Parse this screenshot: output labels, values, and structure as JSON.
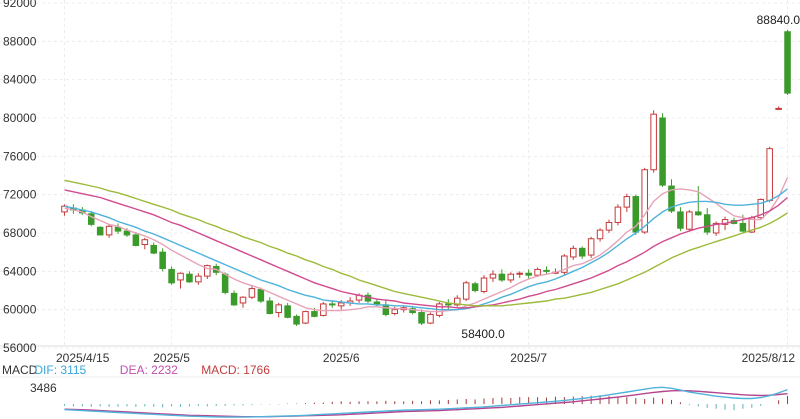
{
  "chart_data": {
    "type": "candlestick",
    "price_axis": {
      "ylim": [
        56000,
        92000
      ],
      "ticks": [
        56000,
        60000,
        64000,
        68000,
        72000,
        76000,
        80000,
        84000,
        88000,
        92000
      ],
      "tick_labels": [
        "56000",
        "60000",
        "64000",
        "68000",
        "72000",
        "76000",
        "80000",
        "84000",
        "88000",
        "92000"
      ]
    },
    "x_axis": {
      "labels": [
        {
          "text": "2025/4/15",
          "index": 0
        },
        {
          "text": "2025/5",
          "index": 12
        },
        {
          "text": "2025/6",
          "index": 31
        },
        {
          "text": "2025/7",
          "index": 52
        },
        {
          "text": "2025/8/12",
          "index": 81
        }
      ]
    },
    "annotations": [
      {
        "text": "88840.0",
        "index": 82,
        "value": 88840
      },
      {
        "text": "58400.0",
        "index": 46,
        "value": 58400
      }
    ],
    "candles": [
      [
        70200,
        71000,
        69800,
        70800
      ],
      [
        70600,
        71000,
        70000,
        70400
      ],
      [
        70400,
        70700,
        69900,
        70100
      ],
      [
        70000,
        70300,
        68700,
        68900
      ],
      [
        68600,
        68700,
        67800,
        67800
      ],
      [
        67800,
        68900,
        67500,
        68700
      ],
      [
        68600,
        69000,
        67900,
        68200
      ],
      [
        68200,
        68500,
        67600,
        67800
      ],
      [
        67800,
        68100,
        66600,
        66700
      ],
      [
        66800,
        67500,
        66300,
        67300
      ],
      [
        66700,
        67000,
        65800,
        65900
      ],
      [
        66000,
        66400,
        64000,
        64300
      ],
      [
        64200,
        64500,
        62600,
        62800
      ],
      [
        63100,
        63900,
        62200,
        63800
      ],
      [
        63700,
        64000,
        62800,
        62900
      ],
      [
        62900,
        63800,
        62600,
        63500
      ],
      [
        63500,
        64700,
        63200,
        64600
      ],
      [
        64500,
        64800,
        63600,
        63900
      ],
      [
        63700,
        63900,
        61600,
        61800
      ],
      [
        61700,
        62000,
        60400,
        60500
      ],
      [
        60700,
        61400,
        60200,
        61300
      ],
      [
        61300,
        62500,
        61100,
        62200
      ],
      [
        62100,
        62300,
        60700,
        60900
      ],
      [
        60900,
        61300,
        59500,
        59600
      ],
      [
        59700,
        60700,
        59200,
        60500
      ],
      [
        60400,
        60700,
        59100,
        59200
      ],
      [
        59300,
        59500,
        58300,
        58500
      ],
      [
        58600,
        59900,
        58500,
        59800
      ],
      [
        59800,
        60200,
        59200,
        59300
      ],
      [
        59400,
        60800,
        59300,
        60600
      ],
      [
        60600,
        61000,
        60200,
        60500
      ],
      [
        60400,
        61000,
        60000,
        60700
      ],
      [
        60700,
        61300,
        60400,
        60900
      ],
      [
        61000,
        61700,
        60700,
        61500
      ],
      [
        61500,
        61800,
        60700,
        60900
      ],
      [
        60800,
        61100,
        60300,
        60600
      ],
      [
        60500,
        61000,
        59300,
        59500
      ],
      [
        59600,
        60300,
        59400,
        60000
      ],
      [
        60000,
        60400,
        59700,
        60200
      ],
      [
        60100,
        60400,
        59500,
        59700
      ],
      [
        59700,
        60000,
        58400,
        58600
      ],
      [
        58600,
        59700,
        58500,
        59500
      ],
      [
        59400,
        60800,
        59200,
        60600
      ],
      [
        60600,
        61100,
        60000,
        60500
      ],
      [
        60500,
        61500,
        60300,
        61200
      ],
      [
        61100,
        63000,
        60900,
        62800
      ],
      [
        62700,
        62900,
        61800,
        62000
      ],
      [
        61900,
        63600,
        61700,
        63300
      ],
      [
        63300,
        64100,
        62900,
        63700
      ],
      [
        63700,
        64200,
        62900,
        63100
      ],
      [
        63100,
        63900,
        62800,
        63700
      ],
      [
        63700,
        64000,
        63300,
        63800
      ],
      [
        63800,
        64200,
        63200,
        63600
      ],
      [
        63600,
        64400,
        63400,
        64200
      ],
      [
        64100,
        64500,
        63700,
        64000
      ],
      [
        63900,
        64300,
        63700,
        63900
      ],
      [
        63900,
        65800,
        63600,
        65600
      ],
      [
        65500,
        66700,
        65200,
        66400
      ],
      [
        66400,
        66600,
        65300,
        65600
      ],
      [
        65700,
        67600,
        65400,
        67400
      ],
      [
        67400,
        68500,
        67100,
        68300
      ],
      [
        68300,
        69400,
        68000,
        69100
      ],
      [
        69100,
        71000,
        68800,
        70700
      ],
      [
        70700,
        72100,
        70200,
        71800
      ],
      [
        71800,
        72000,
        67800,
        68100
      ],
      [
        68100,
        74800,
        67900,
        74600
      ],
      [
        74600,
        80800,
        74300,
        80400
      ],
      [
        80000,
        80500,
        72800,
        73000
      ],
      [
        72900,
        73600,
        70100,
        70300
      ],
      [
        70200,
        70700,
        68200,
        68500
      ],
      [
        68400,
        70400,
        68200,
        70200
      ],
      [
        70200,
        72900,
        69800,
        69900
      ],
      [
        69900,
        70600,
        67800,
        68100
      ],
      [
        68000,
        69200,
        67700,
        69000
      ],
      [
        68900,
        69700,
        68300,
        69400
      ],
      [
        69300,
        69600,
        68900,
        69000
      ],
      [
        69000,
        69900,
        68000,
        68200
      ],
      [
        68100,
        69800,
        68000,
        69600
      ],
      [
        69600,
        71600,
        69500,
        71500
      ],
      [
        71400,
        77000,
        71200,
        76800
      ],
      [
        81000,
        81200,
        80900,
        81000
      ],
      [
        89000,
        89200,
        82400,
        82600
      ]
    ],
    "ma_lines": [
      {
        "color": "#e8a3b8",
        "values": [
          70600,
          70400,
          70200,
          69700,
          69300,
          68900,
          68700,
          68300,
          68000,
          67700,
          67300,
          66800,
          66200,
          65700,
          65200,
          64700,
          64300,
          64200,
          63700,
          63200,
          62800,
          62500,
          62200,
          61800,
          61400,
          61000,
          60600,
          60200,
          60000,
          59900,
          59900,
          59900,
          60000,
          60100,
          60300,
          60300,
          60200,
          60100,
          60100,
          60000,
          59900,
          59800,
          59800,
          59900,
          60000,
          60400,
          60700,
          61100,
          61500,
          61900,
          62300,
          62800,
          63200,
          63500,
          63700,
          63900,
          64200,
          64600,
          64800,
          65200,
          65700,
          66400,
          67200,
          68100,
          68700,
          69900,
          71300,
          72100,
          72500,
          72600,
          72500,
          72300,
          71700,
          71100,
          70400,
          69800,
          69600,
          69400,
          69400,
          70300,
          71700,
          73800
        ]
      },
      {
        "color": "#4fb3dc",
        "values": [
          70800,
          70600,
          70400,
          70200,
          69900,
          69600,
          69200,
          68900,
          68600,
          68200,
          67900,
          67500,
          67100,
          66700,
          66300,
          65900,
          65500,
          65100,
          64700,
          64300,
          63900,
          63500,
          63100,
          62800,
          62500,
          62100,
          61800,
          61500,
          61300,
          61000,
          60900,
          60800,
          60700,
          60600,
          60600,
          60500,
          60500,
          60400,
          60400,
          60300,
          60200,
          60100,
          60000,
          60000,
          60000,
          60100,
          60300,
          60600,
          60900,
          61300,
          61600,
          62000,
          62400,
          62700,
          62900,
          63200,
          63600,
          64000,
          64400,
          64900,
          65400,
          66000,
          66700,
          67400,
          68000,
          68700,
          69500,
          70200,
          70700,
          71000,
          71200,
          71300,
          71300,
          71200,
          71000,
          70900,
          70900,
          71000,
          71100,
          71400,
          71900,
          72600
        ]
      },
      {
        "color": "#d14b8f",
        "values": [
          72500,
          72300,
          72100,
          71900,
          71700,
          71400,
          71100,
          70800,
          70500,
          70200,
          69900,
          69500,
          69100,
          68800,
          68400,
          68000,
          67600,
          67200,
          66800,
          66400,
          66000,
          65600,
          65200,
          64800,
          64400,
          64000,
          63600,
          63200,
          62800,
          62500,
          62200,
          61900,
          61700,
          61500,
          61300,
          61100,
          61000,
          60900,
          60700,
          60600,
          60500,
          60400,
          60300,
          60300,
          60200,
          60200,
          60300,
          60400,
          60500,
          60700,
          60900,
          61100,
          61400,
          61600,
          61900,
          62100,
          62400,
          62700,
          63000,
          63300,
          63700,
          64100,
          64600,
          65000,
          65500,
          66000,
          66600,
          67100,
          67500,
          67900,
          68200,
          68500,
          68700,
          68900,
          69000,
          69200,
          69400,
          69600,
          69900,
          70300,
          70900,
          71700
        ]
      },
      {
        "color": "#9dbb3a",
        "values": [
          73500,
          73300,
          73100,
          72900,
          72700,
          72400,
          72200,
          71900,
          71600,
          71300,
          71000,
          70700,
          70400,
          70000,
          69700,
          69400,
          69000,
          68700,
          68300,
          68000,
          67600,
          67300,
          67000,
          66600,
          66300,
          65900,
          65600,
          65200,
          64900,
          64500,
          64200,
          63800,
          63500,
          63100,
          62800,
          62500,
          62200,
          61900,
          61700,
          61500,
          61300,
          61100,
          60900,
          60700,
          60600,
          60500,
          60400,
          60400,
          60400,
          60400,
          60500,
          60600,
          60700,
          60800,
          60900,
          61100,
          61200,
          61400,
          61600,
          61800,
          62100,
          62400,
          62700,
          63100,
          63500,
          63900,
          64400,
          64900,
          65400,
          65800,
          66200,
          66500,
          66800,
          67100,
          67400,
          67700,
          68000,
          68300,
          68600,
          69000,
          69500,
          70100
        ]
      }
    ],
    "macd": {
      "labels": [
        {
          "text": "MACD",
          "color": "#333333"
        },
        {
          "text": "DIF: 3115",
          "color": "#38a6d8"
        },
        {
          "text": "DEA: 2232",
          "color": "#c24fb0"
        },
        {
          "text": "MACD: 1766",
          "color": "#c43c3c"
        }
      ],
      "tick_label": "3486",
      "tick_value": 3486,
      "ylim": [
        -3200,
        5600
      ],
      "dif_color": "#4fb3dc",
      "dea_color": "#b4458f",
      "hist_pos_color": "#a13a3a",
      "hist_neg_color": "#5ab1b5",
      "dif": [
        -1200,
        -1300,
        -1400,
        -1500,
        -1600,
        -1700,
        -1800,
        -1900,
        -2000,
        -2100,
        -2200,
        -2300,
        -2400,
        -2500,
        -2600,
        -2650,
        -2700,
        -2750,
        -2800,
        -2800,
        -2800,
        -2750,
        -2700,
        -2650,
        -2600,
        -2550,
        -2500,
        -2400,
        -2300,
        -2200,
        -2100,
        -2000,
        -1900,
        -1800,
        -1700,
        -1600,
        -1500,
        -1400,
        -1300,
        -1250,
        -1200,
        -1150,
        -1100,
        -1000,
        -900,
        -800,
        -700,
        -600,
        -450,
        -300,
        -150,
        0,
        150,
        300,
        450,
        600,
        800,
        1000,
        1200,
        1450,
        1700,
        2000,
        2300,
        2600,
        2900,
        3200,
        3500,
        3600,
        3400,
        3000,
        2600,
        2300,
        2000,
        1700,
        1500,
        1300,
        1200,
        1200,
        1400,
        1800,
        2400,
        3115
      ],
      "dea": [
        -1100,
        -1150,
        -1200,
        -1300,
        -1400,
        -1500,
        -1600,
        -1700,
        -1800,
        -1900,
        -2000,
        -2100,
        -2200,
        -2300,
        -2400,
        -2450,
        -2500,
        -2550,
        -2600,
        -2650,
        -2700,
        -2700,
        -2700,
        -2700,
        -2650,
        -2600,
        -2550,
        -2500,
        -2450,
        -2400,
        -2350,
        -2300,
        -2200,
        -2100,
        -2000,
        -1900,
        -1800,
        -1700,
        -1600,
        -1550,
        -1500,
        -1450,
        -1400,
        -1300,
        -1200,
        -1100,
        -1000,
        -900,
        -800,
        -700,
        -550,
        -400,
        -250,
        -100,
        50,
        200,
        350,
        500,
        700,
        900,
        1100,
        1300,
        1500,
        1750,
        2000,
        2250,
        2500,
        2700,
        2850,
        2900,
        2850,
        2750,
        2600,
        2450,
        2300,
        2150,
        2000,
        1900,
        1850,
        1900,
        2050,
        2232
      ],
      "hist": [
        -400,
        -500,
        -500,
        -600,
        -500,
        -600,
        -600,
        -500,
        -600,
        -500,
        -600,
        -700,
        -500,
        -600,
        -500,
        -400,
        -500,
        -400,
        -400,
        -300,
        -300,
        -200,
        -100,
        -100,
        -100,
        100,
        100,
        200,
        300,
        300,
        500,
        600,
        500,
        600,
        600,
        600,
        700,
        600,
        600,
        700,
        600,
        800,
        800,
        900,
        1000,
        1100,
        1000,
        1200,
        1300,
        1400,
        1300,
        1500,
        1500,
        1500,
        1400,
        1600,
        1500,
        1600,
        1700,
        1800,
        1900,
        1700,
        1600,
        1500,
        1300,
        1100,
        1400,
        1200,
        900,
        400,
        -200,
        -500,
        -800,
        -1000,
        -1200,
        -1300,
        -1000,
        -800,
        -400,
        0,
        800,
        1766
      ]
    }
  }
}
